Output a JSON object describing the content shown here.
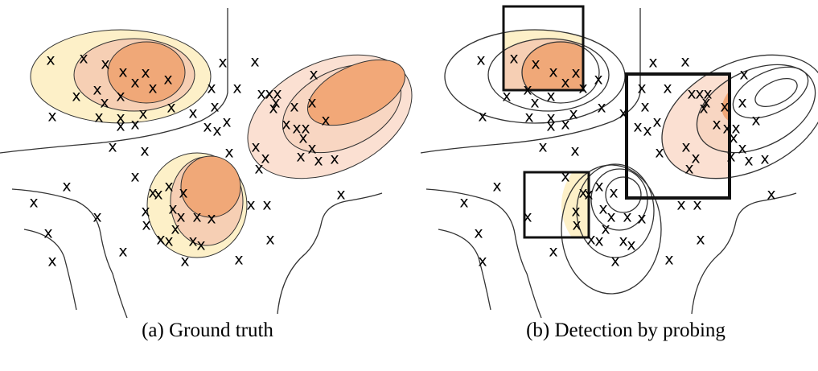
{
  "marker": "x",
  "panels": [
    {
      "caption": "(a) Ground truth"
    },
    {
      "caption": "(b) Detection by probing"
    }
  ]
}
